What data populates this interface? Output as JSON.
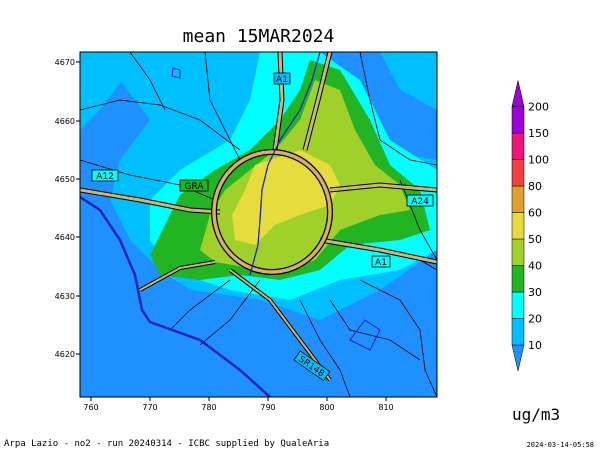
{
  "title": "mean 15MAR2024",
  "unit": "ug/m3",
  "footer_left": "Arpa Lazio - no2 - run 20240314 - ICBC supplied by QualeAria",
  "footer_right": "2024-03-14-05:58",
  "x_ticks": [
    "760",
    "770",
    "780",
    "790",
    "800",
    "810"
  ],
  "y_ticks": [
    "4670",
    "4660",
    "4650",
    "4640",
    "4630",
    "4620"
  ],
  "colorbar": {
    "levels": [
      "10",
      "20",
      "30",
      "40",
      "50",
      "60",
      "80",
      "100",
      "150",
      "200"
    ],
    "colors": [
      "#1e90ff",
      "#00bfff",
      "#00ffff",
      "#22b422",
      "#a0d02a",
      "#e6dc3c",
      "#e0a030",
      "#f04040",
      "#f0147d",
      "#a000d8"
    ]
  },
  "road_labels": [
    "A1",
    "A12",
    "GRA",
    "A24",
    "A1",
    "SR148"
  ]
}
